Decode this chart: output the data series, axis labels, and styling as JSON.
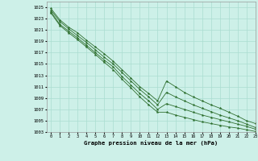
{
  "title": "Graphe pression niveau de la mer (hPa)",
  "bg_color": "#cdf0e8",
  "grid_color": "#aaddd0",
  "line_color": "#2d6e2d",
  "xlim": [
    -0.5,
    23
  ],
  "ylim": [
    1003,
    1026
  ],
  "yticks": [
    1003,
    1005,
    1007,
    1009,
    1011,
    1013,
    1015,
    1017,
    1019,
    1021,
    1023,
    1025
  ],
  "xticks": [
    0,
    1,
    2,
    3,
    4,
    5,
    6,
    7,
    8,
    9,
    10,
    11,
    12,
    13,
    14,
    15,
    16,
    17,
    18,
    19,
    20,
    21,
    22,
    23
  ],
  "series": [
    [
      1024.8,
      1022.8,
      1021.5,
      1020.5,
      1019.2,
      1018.0,
      1016.8,
      1015.5,
      1014.0,
      1012.5,
      1011.0,
      1009.8,
      1008.5,
      1012.0,
      1011.0,
      1010.0,
      1009.2,
      1008.5,
      1007.8,
      1007.2,
      1006.5,
      1005.8,
      1005.0,
      1004.5
    ],
    [
      1024.5,
      1022.5,
      1021.2,
      1020.0,
      1018.8,
      1017.5,
      1016.2,
      1015.0,
      1013.5,
      1012.0,
      1010.5,
      1009.2,
      1007.8,
      1010.0,
      1009.2,
      1008.5,
      1007.8,
      1007.2,
      1006.6,
      1006.0,
      1005.5,
      1005.0,
      1004.4,
      1003.8
    ],
    [
      1024.2,
      1022.0,
      1020.8,
      1019.6,
      1018.3,
      1017.0,
      1015.7,
      1014.5,
      1012.8,
      1011.3,
      1009.8,
      1008.5,
      1007.0,
      1008.0,
      1007.5,
      1007.0,
      1006.5,
      1006.0,
      1005.6,
      1005.2,
      1004.8,
      1004.4,
      1004.0,
      1003.5
    ],
    [
      1024.0,
      1021.8,
      1020.5,
      1019.3,
      1018.0,
      1016.7,
      1015.3,
      1014.0,
      1012.3,
      1010.8,
      1009.2,
      1007.8,
      1006.5,
      1006.5,
      1006.0,
      1005.6,
      1005.2,
      1004.8,
      1004.5,
      1004.2,
      1003.9,
      1003.7,
      1003.4,
      1003.1
    ]
  ]
}
